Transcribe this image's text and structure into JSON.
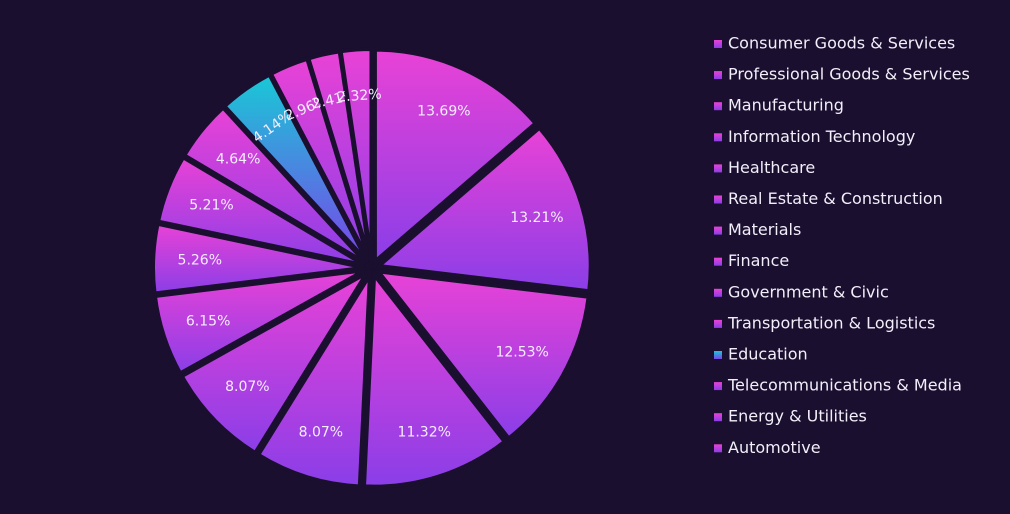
{
  "chart_data": {
    "type": "pie",
    "categories": [
      "Consumer Goods & Services",
      "Professional Goods & Services",
      "Manufacturing",
      "Information Technology",
      "Healthcare",
      "Real Estate & Construction",
      "Materials",
      "Finance",
      "Government & Civic",
      "Transportation & Logistics",
      "Education",
      "Telecommunications & Media",
      "Energy & Utilities",
      "Automotive"
    ],
    "values": [
      13.69,
      13.21,
      12.53,
      11.32,
      8.07,
      8.07,
      6.15,
      5.26,
      5.21,
      4.64,
      4.14,
      2.96,
      2.41,
      2.32
    ],
    "value_labels": [
      "13.69%",
      "13.21%",
      "12.53%",
      "11.32%",
      "8.07%",
      "8.07%",
      "6.15%",
      "5.26%",
      "5.21%",
      "4.64%",
      "4.14%",
      "2.96%",
      "2.41%",
      "2.32%"
    ],
    "colors": [
      "#d43fd8",
      "#d43fd8",
      "#d43fd8",
      "#d43fd8",
      "#d43fd8",
      "#d43fd8",
      "#d43fd8",
      "#d43fd8",
      "#d43fd8",
      "#d43fd8",
      "#1fb8d8",
      "#d43fd8",
      "#d43fd8",
      "#d43fd8"
    ],
    "legend": "right"
  }
}
